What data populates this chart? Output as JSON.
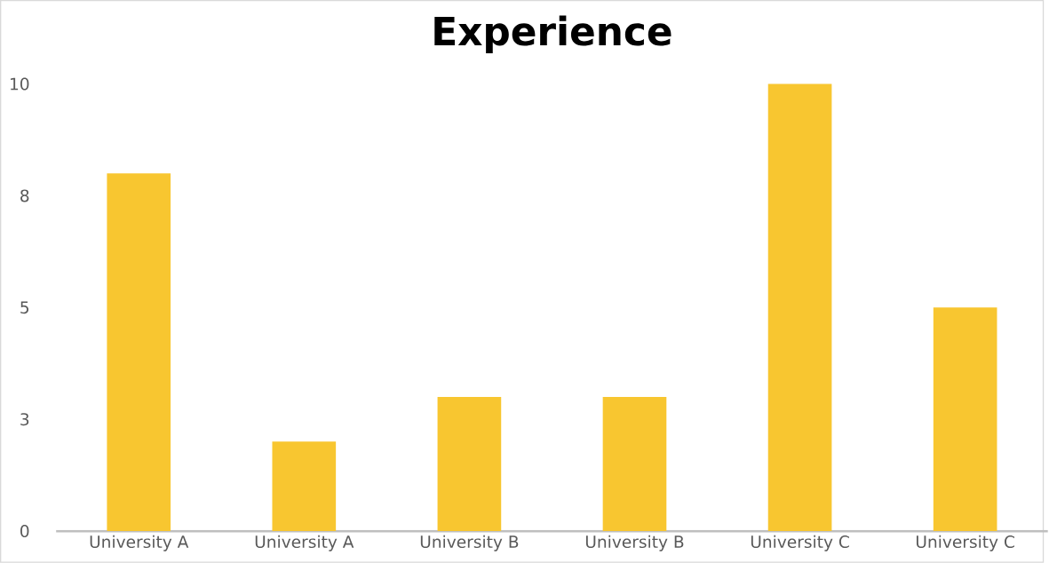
{
  "chart_data": {
    "type": "bar",
    "title": "Experience",
    "categories": [
      "University A",
      "University A",
      "University B",
      "University B",
      "University C",
      "University C"
    ],
    "values": [
      8,
      2,
      3,
      3,
      10,
      5
    ],
    "color": "#f8c630",
    "ylim": [
      0,
      10
    ],
    "yticks": [
      0,
      {
        "value": 2.5,
        "label": "3"
      },
      5,
      {
        "value": 7.5,
        "label": "8"
      },
      10
    ],
    "grid": false
  }
}
